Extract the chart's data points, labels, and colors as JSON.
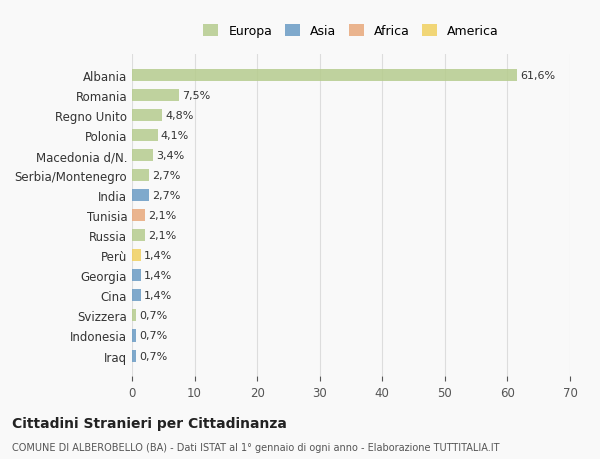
{
  "categories": [
    "Albania",
    "Romania",
    "Regno Unito",
    "Polonia",
    "Macedonia d/N.",
    "Serbia/Montenegro",
    "India",
    "Tunisia",
    "Russia",
    "Perù",
    "Georgia",
    "Cina",
    "Svizzera",
    "Indonesia",
    "Iraq"
  ],
  "values": [
    61.6,
    7.5,
    4.8,
    4.1,
    3.4,
    2.7,
    2.7,
    2.1,
    2.1,
    1.4,
    1.4,
    1.4,
    0.7,
    0.7,
    0.7
  ],
  "labels": [
    "61,6%",
    "7,5%",
    "4,8%",
    "4,1%",
    "3,4%",
    "2,7%",
    "2,7%",
    "2,1%",
    "2,1%",
    "1,4%",
    "1,4%",
    "1,4%",
    "0,7%",
    "0,7%",
    "0,7%"
  ],
  "continents": [
    "Europa",
    "Europa",
    "Europa",
    "Europa",
    "Europa",
    "Europa",
    "Asia",
    "Africa",
    "Europa",
    "America",
    "Asia",
    "Asia",
    "Europa",
    "Asia",
    "Asia"
  ],
  "continent_colors": {
    "Europa": "#b5cc8e",
    "Asia": "#6a9bc4",
    "Africa": "#e8a87c",
    "America": "#f0d060"
  },
  "legend_order": [
    "Europa",
    "Asia",
    "Africa",
    "America"
  ],
  "title": "Cittadini Stranieri per Cittadinanza",
  "subtitle": "COMUNE DI ALBEROBELLO (BA) - Dati ISTAT al 1° gennaio di ogni anno - Elaborazione TUTTITALIA.IT",
  "xlim": [
    0,
    70
  ],
  "xticks": [
    0,
    10,
    20,
    30,
    40,
    50,
    60,
    70
  ],
  "background_color": "#f9f9f9",
  "grid_color": "#dddddd",
  "bar_height": 0.6
}
